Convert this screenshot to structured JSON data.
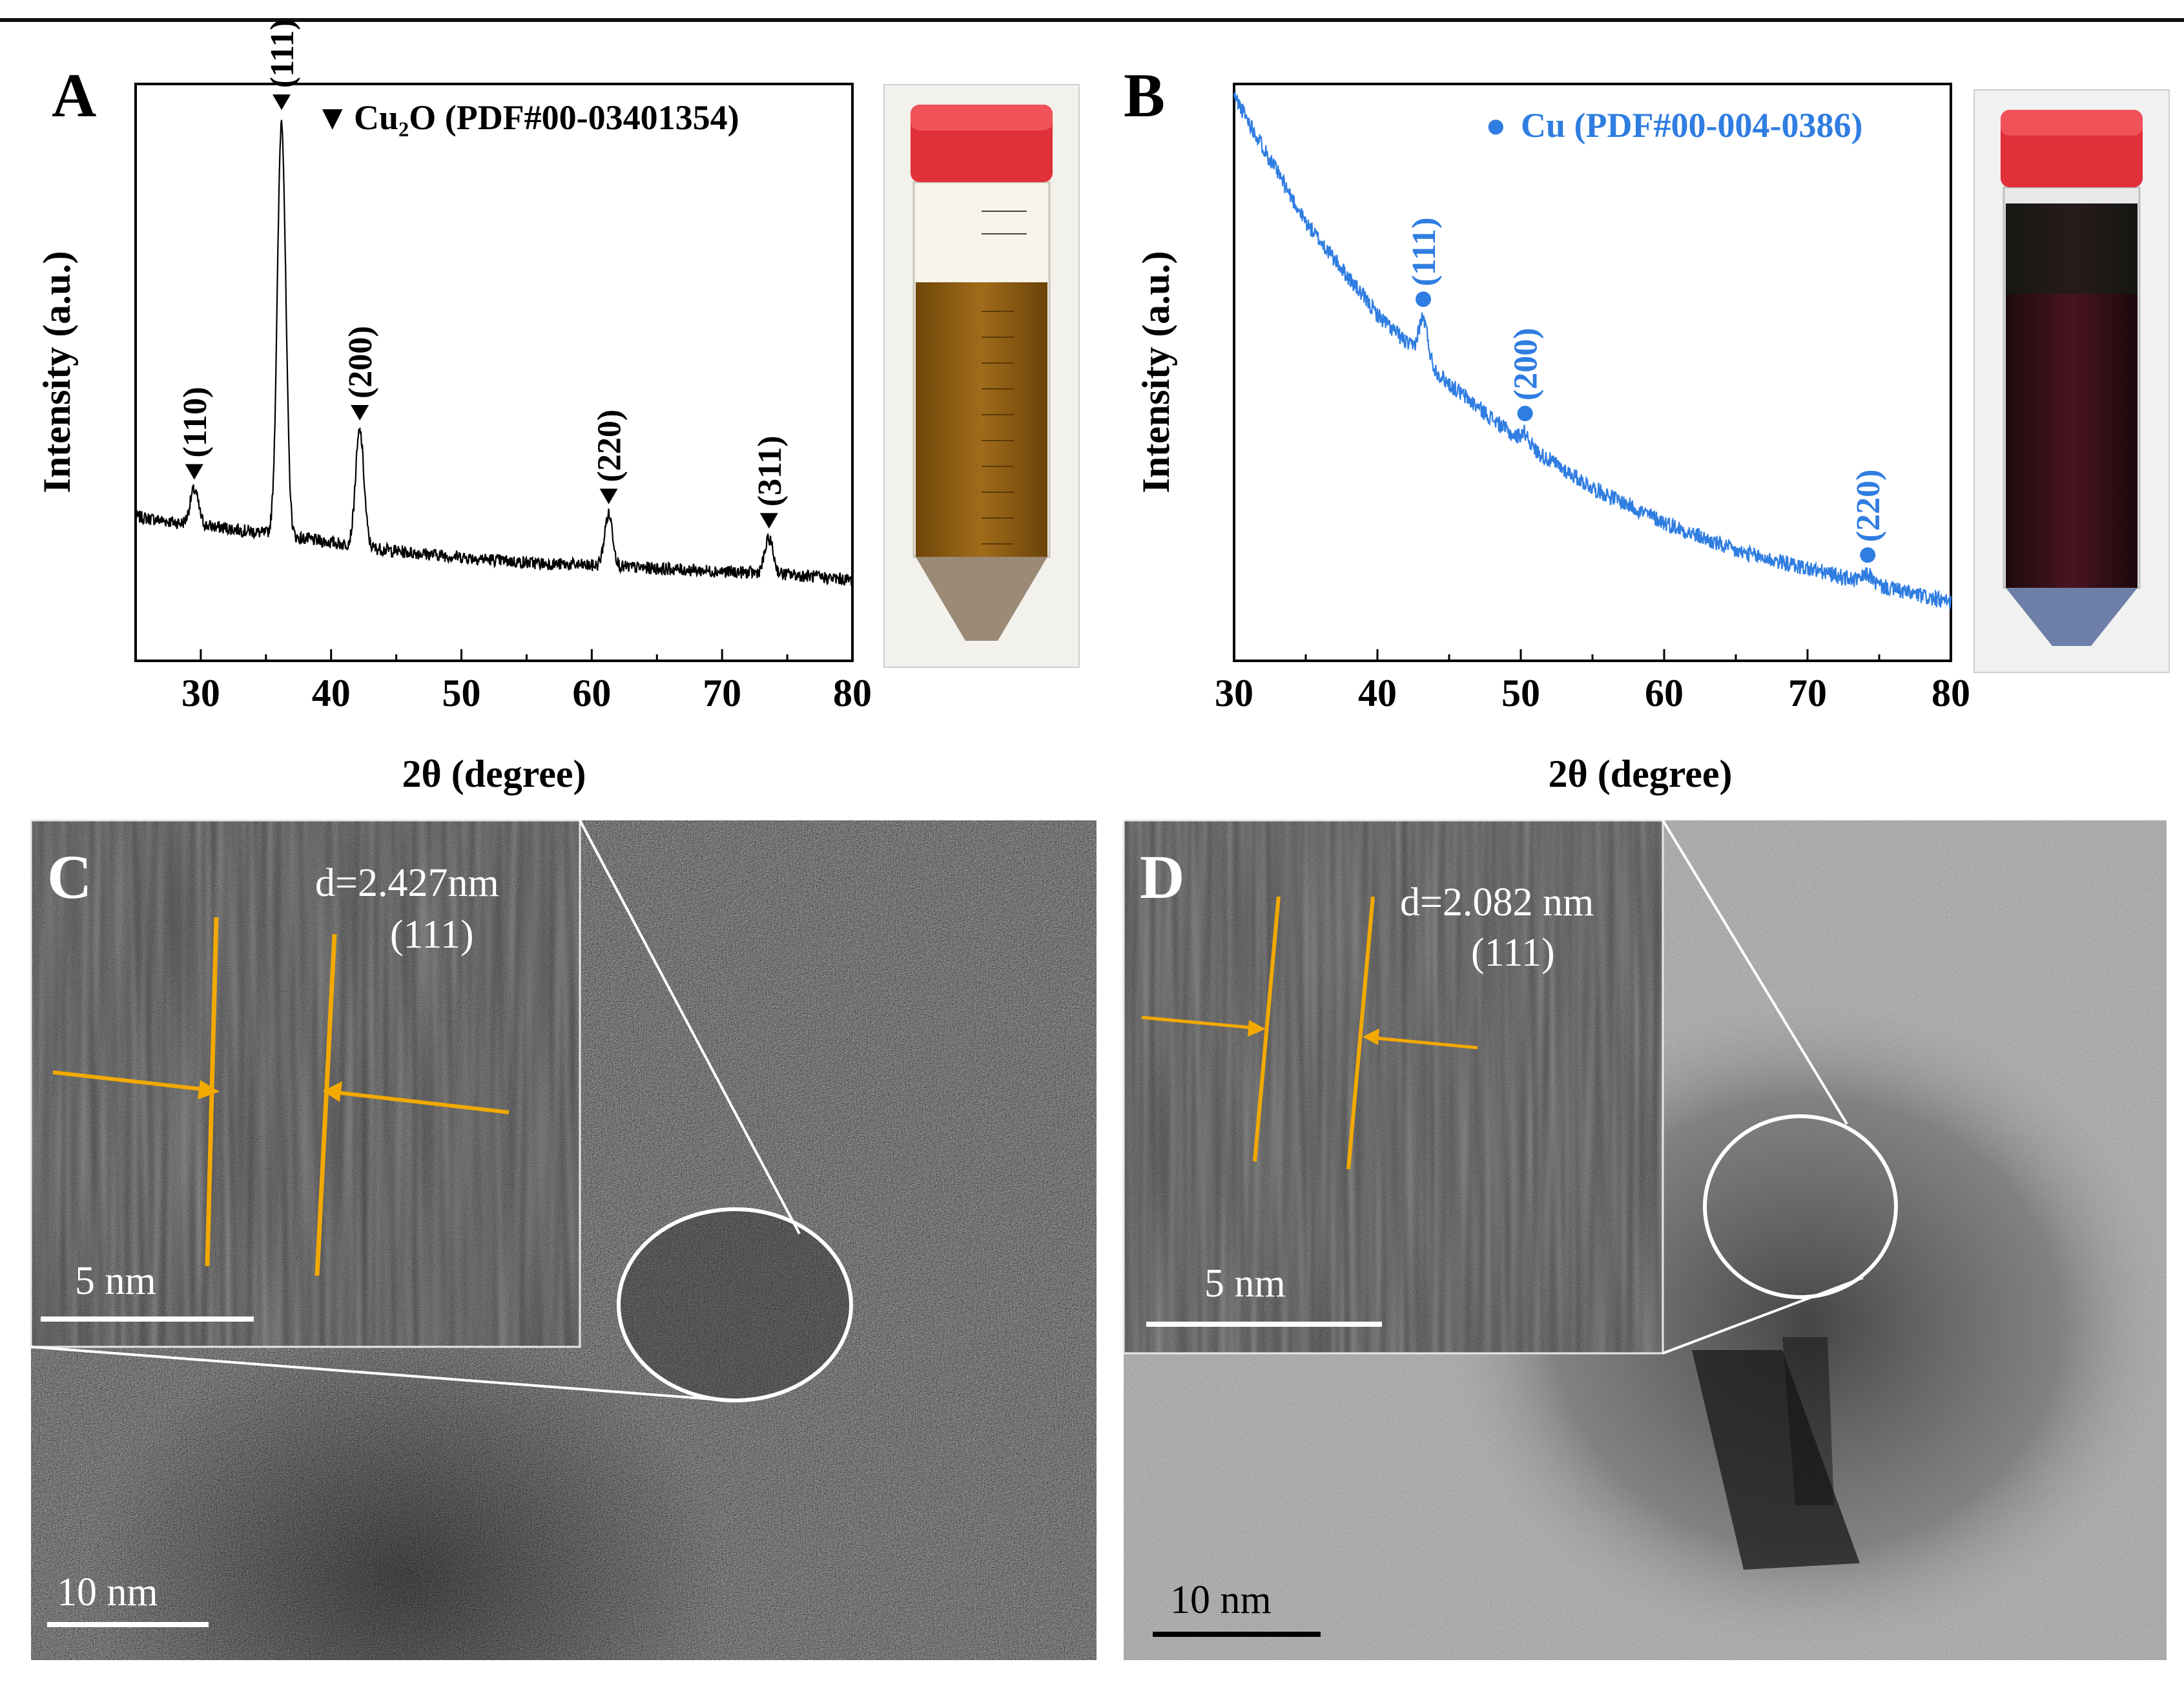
{
  "figure": {
    "panels": {
      "A": {
        "letter": "A"
      },
      "B": {
        "letter": "B"
      },
      "C": {
        "letter": "C",
        "d_spacing": "d=2.427nm",
        "plane": "(111)",
        "inset_scalebar": "5 nm",
        "scalebar": "10 nm"
      },
      "D": {
        "letter": "D",
        "d_spacing": "d=2.082 nm",
        "plane": "(111)",
        "inset_scalebar": "5 nm",
        "scalebar": "10 nm"
      }
    }
  },
  "colors": {
    "panel_A_trace": "#000000",
    "panel_B_trace": "#2f7de1",
    "lattice_lines": "#f2a900",
    "photo_A_liquid": "#8a5a12",
    "photo_B_liquid": "#3a0f18",
    "cap": "#e0303a"
  },
  "chart_data": [
    {
      "panel": "A",
      "type": "line",
      "xlabel": "2θ (degree)",
      "ylabel": "Intensity (a.u.)",
      "xlim": [
        25,
        80
      ],
      "xticks": [
        30,
        40,
        50,
        60,
        70,
        80
      ],
      "legend": {
        "marker": "▼",
        "text": "Cu₂O (PDF#00-03401354)",
        "position": "top-right"
      },
      "baseline_points": [
        [
          25,
          0.25
        ],
        [
          28,
          0.24
        ],
        [
          32,
          0.23
        ],
        [
          45,
          0.19
        ],
        [
          55,
          0.17
        ],
        [
          65,
          0.16
        ],
        [
          75,
          0.15
        ],
        [
          80,
          0.14
        ]
      ],
      "peaks": [
        {
          "x": 29.5,
          "label": "(110)",
          "height": 0.06
        },
        {
          "x": 36.2,
          "label": "(111)",
          "height": 0.72
        },
        {
          "x": 42.2,
          "label": "(200)",
          "height": 0.2
        },
        {
          "x": 61.3,
          "label": "(220)",
          "height": 0.09
        },
        {
          "x": 73.6,
          "label": "(311)",
          "height": 0.06
        }
      ]
    },
    {
      "panel": "B",
      "type": "line",
      "xlabel": "2θ (degree)",
      "ylabel": "Intensity (a.u.)",
      "xlim": [
        30,
        80
      ],
      "xticks": [
        30,
        40,
        50,
        60,
        70,
        80
      ],
      "legend": {
        "marker": "●",
        "text": "Cu (PDF#00-004-0386)",
        "position": "top-right"
      },
      "baseline_points": [
        [
          30,
          0.98
        ],
        [
          35,
          0.76
        ],
        [
          40,
          0.6
        ],
        [
          45,
          0.48
        ],
        [
          50,
          0.38
        ],
        [
          55,
          0.3
        ],
        [
          60,
          0.24
        ],
        [
          65,
          0.19
        ],
        [
          70,
          0.16
        ],
        [
          75,
          0.13
        ],
        [
          80,
          0.1
        ]
      ],
      "peaks": [
        {
          "x": 43.2,
          "label": "(111)",
          "height": 0.07
        },
        {
          "x": 50.3,
          "label": "(200)",
          "height": 0.02
        },
        {
          "x": 74.2,
          "label": "(220)",
          "height": 0.015
        }
      ]
    }
  ]
}
